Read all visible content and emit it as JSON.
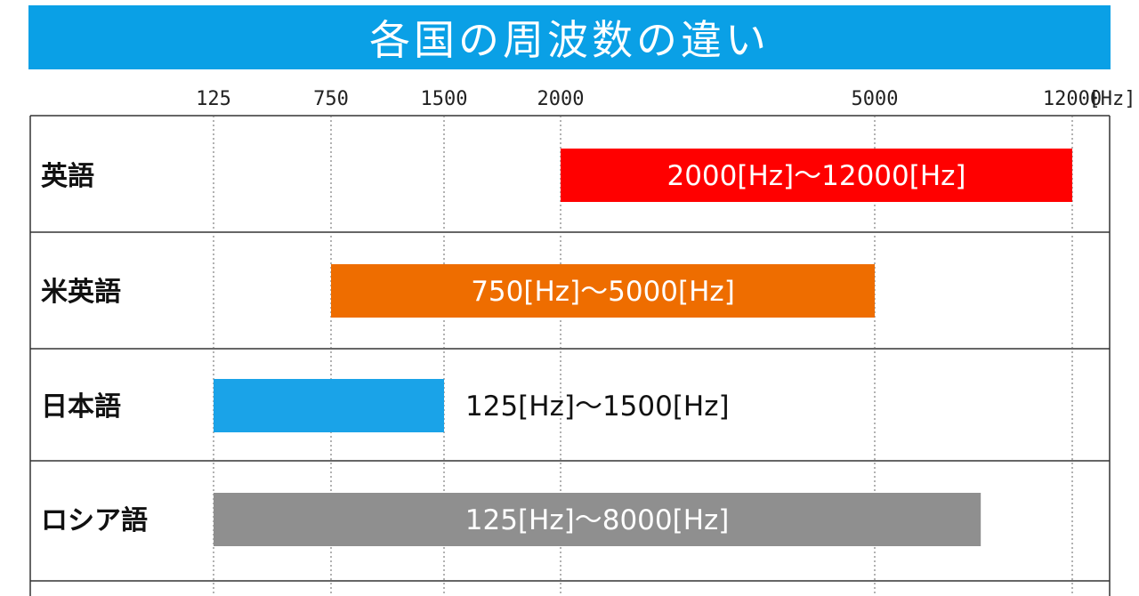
{
  "title": "各国の周波数の違い",
  "unit_label": "[Hz]",
  "colors": {
    "banner": "#0aa0e6",
    "english": "#ff0000",
    "american_english": "#ee6d00",
    "japanese": "#1aa3e8",
    "russian": "#8f8f8f"
  },
  "chart_data": {
    "type": "bar",
    "orientation": "horizontal",
    "title": "各国の周波数の違い",
    "xunit": "[Hz]",
    "xticks": [
      {
        "value": 125,
        "label": "125"
      },
      {
        "value": 750,
        "label": "750"
      },
      {
        "value": 1500,
        "label": "1500"
      },
      {
        "value": 2000,
        "label": "2000"
      },
      {
        "value": 5000,
        "label": "5000"
      },
      {
        "value": 12000,
        "label": "12000"
      }
    ],
    "grid": true,
    "series": [
      {
        "category": "英語",
        "start": 2000,
        "end": 12000,
        "label": "2000[Hz]～12000[Hz]",
        "color": "#ff0000",
        "label_color": "#ffffff",
        "label_position": "inside"
      },
      {
        "category": "米英語",
        "start": 750,
        "end": 5000,
        "label": "750[Hz]～5000[Hz]",
        "color": "#ee6d00",
        "label_color": "#ffffff",
        "label_position": "inside"
      },
      {
        "category": "日本語",
        "start": 125,
        "end": 1500,
        "label": "125[Hz]～1500[Hz]",
        "color": "#1aa3e8",
        "label_color": "#111111",
        "label_position": "outside"
      },
      {
        "category": "ロシア語",
        "start": 125,
        "end": 8000,
        "label": "125[Hz]～8000[Hz]",
        "color": "#8f8f8f",
        "label_color": "#ffffff",
        "label_position": "inside"
      }
    ]
  }
}
